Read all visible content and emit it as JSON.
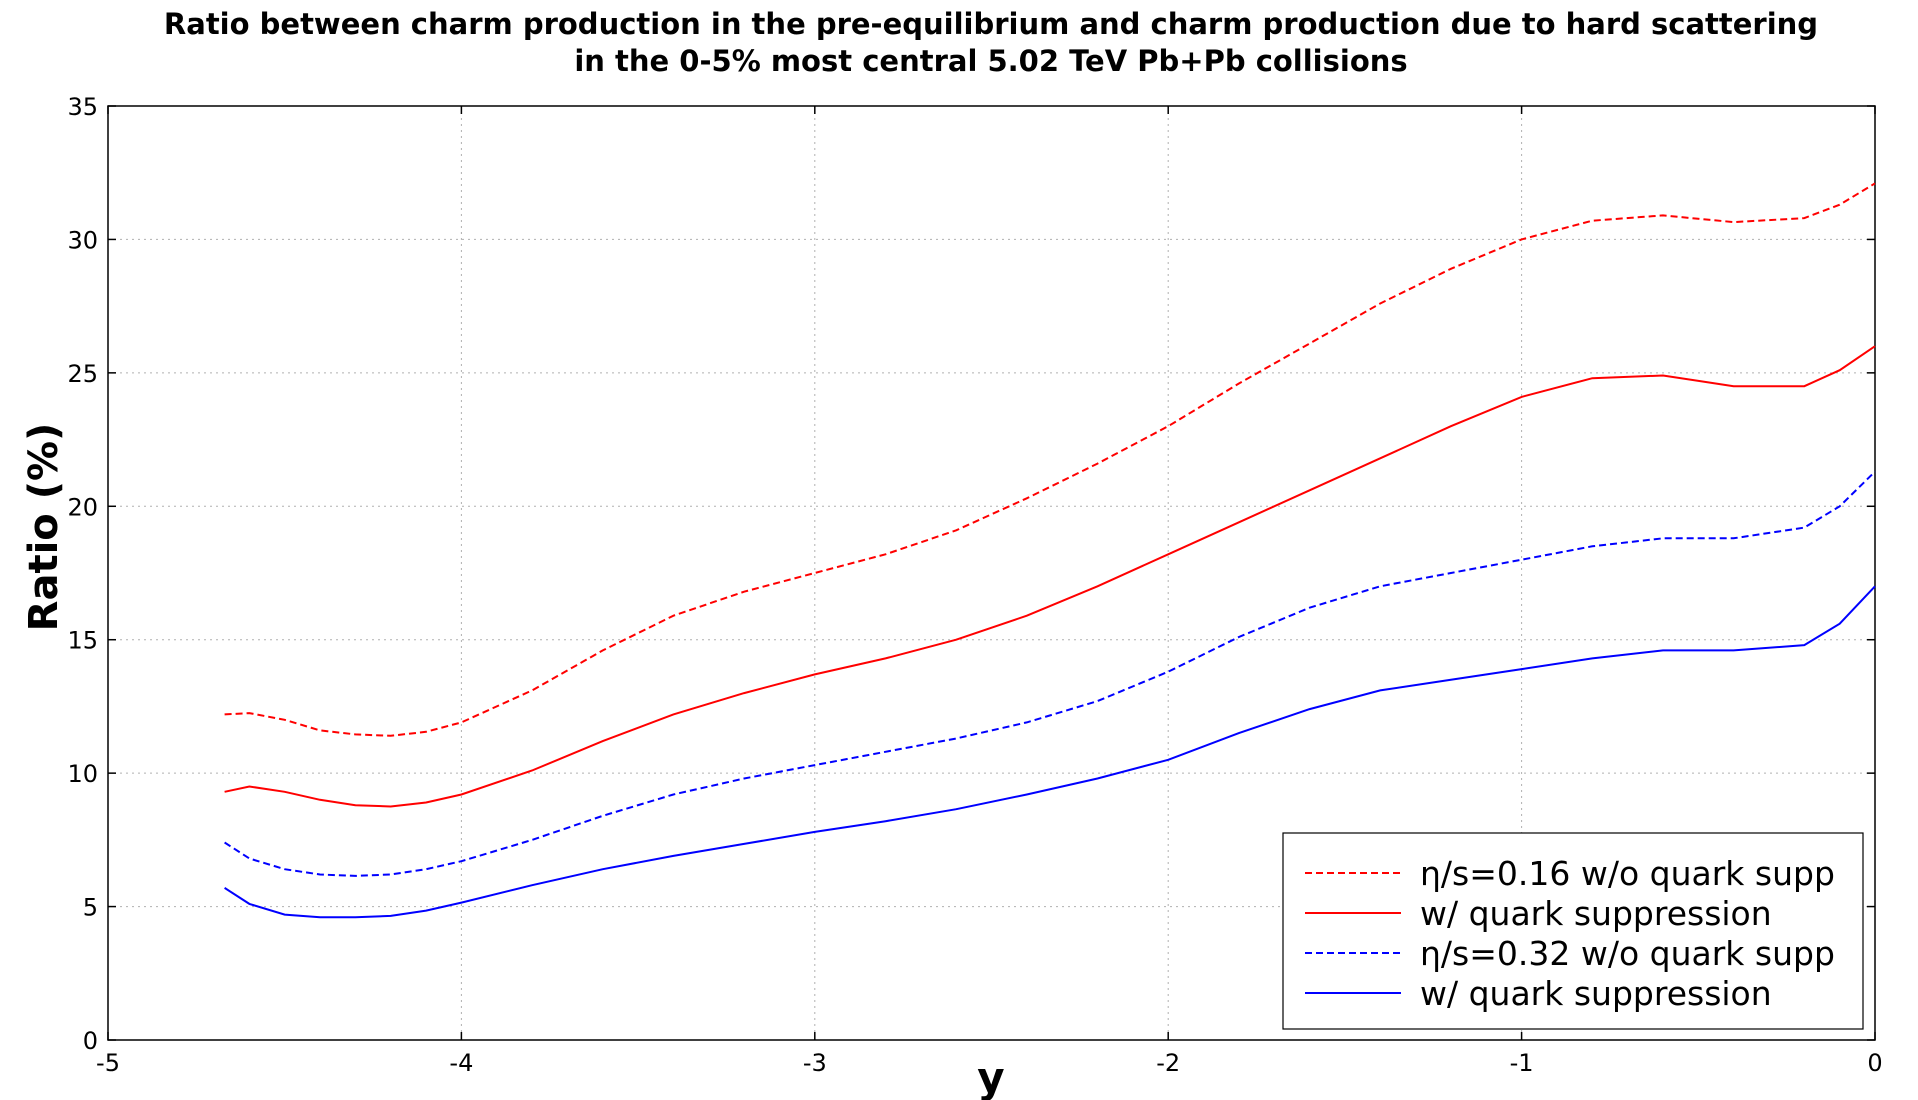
{
  "chart_data": {
    "type": "line",
    "title": "Ratio between charm production in the pre-equilibrium and charm production due to hard scattering",
    "subtitle": "in the 0-5% most central 5.02 TeV Pb+Pb collisions",
    "xlabel": "y",
    "ylabel": "Ratio (%)",
    "xlim": [
      -5,
      0
    ],
    "ylim": [
      0,
      35
    ],
    "xticks": [
      -5,
      -4,
      -3,
      -2,
      -1,
      0
    ],
    "yticks": [
      0,
      5,
      10,
      15,
      20,
      25,
      30,
      35
    ],
    "grid": true,
    "legend_position": "bottom-right",
    "series": [
      {
        "name": "η/s=0.16 w/o quark supp",
        "color": "#ff0000",
        "style": "dashed",
        "x": [
          -4.67,
          -4.6,
          -4.5,
          -4.4,
          -4.3,
          -4.2,
          -4.1,
          -4.0,
          -3.8,
          -3.6,
          -3.4,
          -3.2,
          -3.0,
          -2.8,
          -2.6,
          -2.4,
          -2.2,
          -2.0,
          -1.8,
          -1.6,
          -1.4,
          -1.2,
          -1.0,
          -0.8,
          -0.6,
          -0.4,
          -0.2,
          -0.1,
          0.0
        ],
        "values": [
          12.2,
          12.25,
          12.0,
          11.6,
          11.45,
          11.4,
          11.55,
          11.9,
          13.1,
          14.6,
          15.9,
          16.8,
          17.5,
          18.2,
          19.1,
          20.3,
          21.6,
          23.0,
          24.6,
          26.1,
          27.6,
          28.9,
          30.0,
          30.7,
          30.9,
          30.65,
          30.8,
          31.3,
          32.1
        ]
      },
      {
        "name": "w/ quark suppression",
        "color": "#ff0000",
        "style": "solid",
        "x": [
          -4.67,
          -4.6,
          -4.5,
          -4.4,
          -4.3,
          -4.2,
          -4.1,
          -4.0,
          -3.8,
          -3.6,
          -3.4,
          -3.2,
          -3.0,
          -2.8,
          -2.6,
          -2.4,
          -2.2,
          -2.0,
          -1.8,
          -1.6,
          -1.4,
          -1.2,
          -1.0,
          -0.8,
          -0.6,
          -0.4,
          -0.2,
          -0.1,
          0.0
        ],
        "values": [
          9.3,
          9.5,
          9.3,
          9.0,
          8.8,
          8.75,
          8.9,
          9.2,
          10.1,
          11.2,
          12.2,
          13.0,
          13.7,
          14.3,
          15.0,
          15.9,
          17.0,
          18.2,
          19.4,
          20.6,
          21.8,
          23.0,
          24.1,
          24.8,
          24.9,
          24.5,
          24.5,
          25.1,
          26.0
        ]
      },
      {
        "name": "η/s=0.32 w/o quark supp",
        "color": "#0000ff",
        "style": "dashed",
        "x": [
          -4.67,
          -4.6,
          -4.5,
          -4.4,
          -4.3,
          -4.2,
          -4.1,
          -4.0,
          -3.8,
          -3.6,
          -3.4,
          -3.2,
          -3.0,
          -2.8,
          -2.6,
          -2.4,
          -2.2,
          -2.0,
          -1.8,
          -1.6,
          -1.4,
          -1.2,
          -1.0,
          -0.8,
          -0.6,
          -0.4,
          -0.2,
          -0.1,
          0.0
        ],
        "values": [
          7.4,
          6.8,
          6.4,
          6.2,
          6.15,
          6.2,
          6.4,
          6.7,
          7.5,
          8.4,
          9.2,
          9.8,
          10.3,
          10.8,
          11.3,
          11.9,
          12.7,
          13.8,
          15.1,
          16.2,
          17.0,
          17.5,
          18.0,
          18.5,
          18.8,
          18.8,
          19.2,
          20.0,
          21.3
        ]
      },
      {
        "name": "w/ quark suppression",
        "color": "#0000ff",
        "style": "solid",
        "x": [
          -4.67,
          -4.6,
          -4.5,
          -4.4,
          -4.3,
          -4.2,
          -4.1,
          -4.0,
          -3.8,
          -3.6,
          -3.4,
          -3.2,
          -3.0,
          -2.8,
          -2.6,
          -2.4,
          -2.2,
          -2.0,
          -1.8,
          -1.6,
          -1.4,
          -1.2,
          -1.0,
          -0.8,
          -0.6,
          -0.4,
          -0.2,
          -0.1,
          0.0
        ],
        "values": [
          5.7,
          5.1,
          4.7,
          4.6,
          4.6,
          4.65,
          4.85,
          5.15,
          5.8,
          6.4,
          6.9,
          7.35,
          7.8,
          8.2,
          8.65,
          9.2,
          9.8,
          10.5,
          11.5,
          12.4,
          13.1,
          13.5,
          13.9,
          14.3,
          14.6,
          14.6,
          14.8,
          15.6,
          17.0
        ]
      }
    ]
  }
}
